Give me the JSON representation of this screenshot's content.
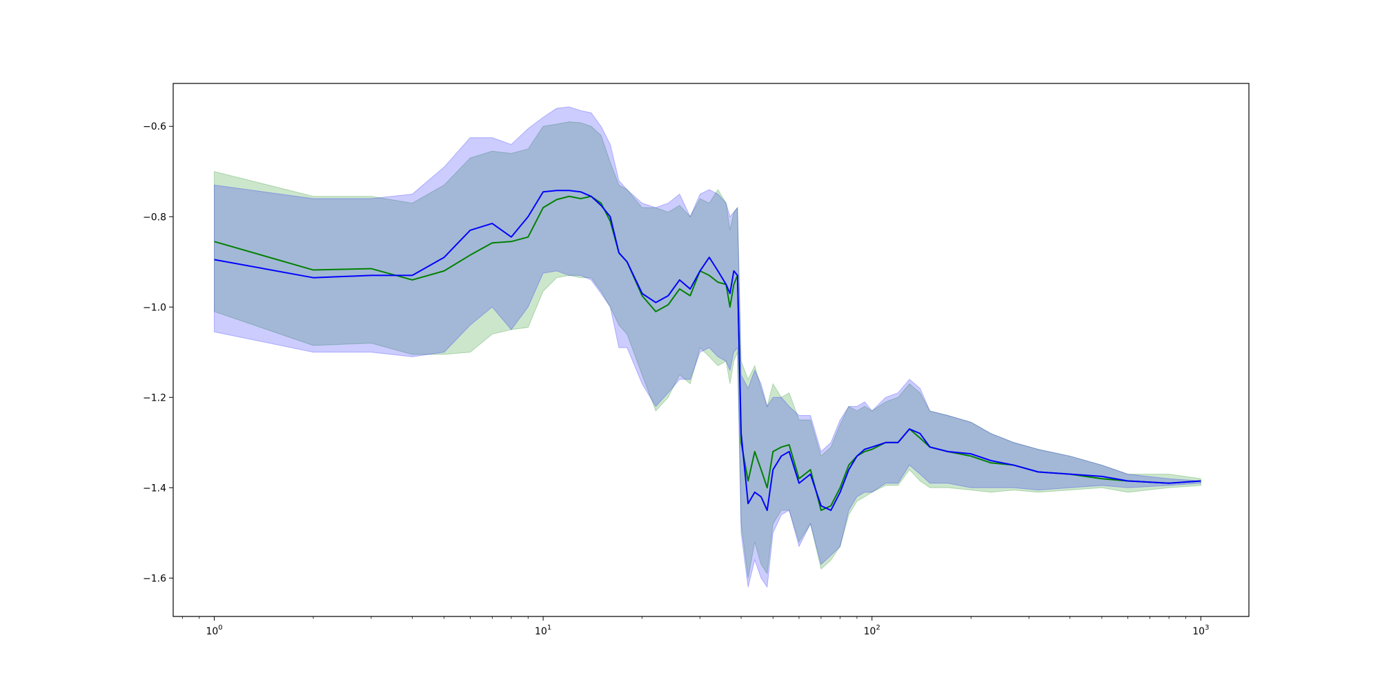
{
  "chart_data": {
    "type": "line",
    "x_scale": "log",
    "xlim": [
      0.75,
      1400
    ],
    "ylim": [
      -1.685,
      -0.505
    ],
    "xticks": [
      {
        "value": 1,
        "base": "10",
        "exp": "0"
      },
      {
        "value": 10,
        "base": "10",
        "exp": "1"
      },
      {
        "value": 100,
        "base": "10",
        "exp": "2"
      },
      {
        "value": 1000,
        "base": "10",
        "exp": "3"
      }
    ],
    "yticks": [
      {
        "value": -0.6,
        "label": "−0.6"
      },
      {
        "value": -0.8,
        "label": "−0.8"
      },
      {
        "value": -1.0,
        "label": "−1.0"
      },
      {
        "value": -1.2,
        "label": "−1.2"
      },
      {
        "value": -1.4,
        "label": "−1.4"
      },
      {
        "value": -1.6,
        "label": "−1.6"
      }
    ],
    "grid": false,
    "legend": "none",
    "series": [
      {
        "color": "#008000",
        "band_color": "#008000",
        "band_opacity": 0.2,
        "x": [
          1,
          2,
          3,
          4,
          5,
          6,
          7,
          8,
          9,
          10,
          11,
          12,
          13,
          14,
          15,
          16,
          17,
          18,
          20,
          22,
          24,
          26,
          28,
          30,
          32,
          34,
          36,
          37,
          38,
          39,
          40,
          42,
          44,
          46,
          48,
          50,
          53,
          56,
          60,
          65,
          70,
          75,
          80,
          85,
          90,
          95,
          100,
          110,
          120,
          130,
          140,
          150,
          170,
          200,
          230,
          270,
          320,
          400,
          500,
          600,
          800,
          1000
        ],
        "y": [
          -0.855,
          -0.918,
          -0.915,
          -0.94,
          -0.92,
          -0.885,
          -0.858,
          -0.855,
          -0.845,
          -0.78,
          -0.762,
          -0.755,
          -0.76,
          -0.755,
          -0.77,
          -0.81,
          -0.88,
          -0.9,
          -0.975,
          -1.01,
          -0.995,
          -0.96,
          -0.975,
          -0.92,
          -0.93,
          -0.945,
          -0.95,
          -1.0,
          -0.95,
          -0.93,
          -1.3,
          -1.385,
          -1.32,
          -1.36,
          -1.4,
          -1.32,
          -1.31,
          -1.305,
          -1.38,
          -1.36,
          -1.45,
          -1.44,
          -1.4,
          -1.35,
          -1.33,
          -1.32,
          -1.315,
          -1.3,
          -1.3,
          -1.27,
          -1.29,
          -1.31,
          -1.32,
          -1.33,
          -1.345,
          -1.35,
          -1.365,
          -1.37,
          -1.38,
          -1.385,
          -1.39,
          -1.385
        ],
        "upper": [
          -0.7,
          -0.755,
          -0.755,
          -0.77,
          -0.73,
          -0.67,
          -0.655,
          -0.66,
          -0.65,
          -0.6,
          -0.595,
          -0.59,
          -0.592,
          -0.6,
          -0.62,
          -0.68,
          -0.73,
          -0.74,
          -0.78,
          -0.78,
          -0.79,
          -0.775,
          -0.8,
          -0.76,
          -0.77,
          -0.74,
          -0.77,
          -0.83,
          -0.79,
          -0.78,
          -1.12,
          -1.16,
          -1.13,
          -1.18,
          -1.22,
          -1.17,
          -1.2,
          -1.19,
          -1.25,
          -1.25,
          -1.33,
          -1.31,
          -1.26,
          -1.22,
          -1.23,
          -1.22,
          -1.23,
          -1.21,
          -1.2,
          -1.17,
          -1.19,
          -1.23,
          -1.24,
          -1.255,
          -1.28,
          -1.3,
          -1.315,
          -1.33,
          -1.35,
          -1.37,
          -1.37,
          -1.38
        ],
        "lower": [
          -1.01,
          -1.085,
          -1.08,
          -1.105,
          -1.105,
          -1.1,
          -1.06,
          -1.05,
          -1.045,
          -0.965,
          -0.935,
          -0.93,
          -0.935,
          -0.935,
          -0.965,
          -1.0,
          -1.04,
          -1.06,
          -1.15,
          -1.23,
          -1.2,
          -1.15,
          -1.17,
          -1.09,
          -1.11,
          -1.13,
          -1.12,
          -1.17,
          -1.12,
          -1.1,
          -1.48,
          -1.6,
          -1.52,
          -1.57,
          -1.59,
          -1.48,
          -1.45,
          -1.45,
          -1.52,
          -1.48,
          -1.58,
          -1.56,
          -1.53,
          -1.46,
          -1.43,
          -1.42,
          -1.41,
          -1.395,
          -1.395,
          -1.36,
          -1.385,
          -1.4,
          -1.4,
          -1.405,
          -1.41,
          -1.405,
          -1.41,
          -1.405,
          -1.4,
          -1.41,
          -1.4,
          -1.395
        ]
      },
      {
        "color": "#0000ff",
        "band_color": "#0000ff",
        "band_opacity": 0.2,
        "x": [
          1,
          2,
          3,
          4,
          5,
          6,
          7,
          8,
          9,
          10,
          11,
          12,
          13,
          14,
          15,
          16,
          17,
          18,
          20,
          22,
          24,
          26,
          28,
          30,
          32,
          34,
          36,
          37,
          38,
          39,
          40,
          42,
          44,
          46,
          48,
          50,
          53,
          56,
          60,
          65,
          70,
          75,
          80,
          85,
          90,
          95,
          100,
          110,
          120,
          130,
          140,
          150,
          170,
          200,
          230,
          270,
          320,
          400,
          500,
          600,
          800,
          1000
        ],
        "y": [
          -0.895,
          -0.935,
          -0.93,
          -0.93,
          -0.89,
          -0.83,
          -0.815,
          -0.845,
          -0.8,
          -0.745,
          -0.742,
          -0.742,
          -0.745,
          -0.755,
          -0.775,
          -0.8,
          -0.88,
          -0.9,
          -0.97,
          -0.99,
          -0.975,
          -0.94,
          -0.96,
          -0.92,
          -0.89,
          -0.92,
          -0.95,
          -0.97,
          -0.92,
          -0.93,
          -1.28,
          -1.435,
          -1.41,
          -1.42,
          -1.45,
          -1.36,
          -1.33,
          -1.32,
          -1.39,
          -1.37,
          -1.44,
          -1.45,
          -1.41,
          -1.36,
          -1.33,
          -1.315,
          -1.31,
          -1.3,
          -1.3,
          -1.27,
          -1.28,
          -1.31,
          -1.32,
          -1.325,
          -1.34,
          -1.35,
          -1.365,
          -1.37,
          -1.375,
          -1.385,
          -1.39,
          -1.385
        ],
        "upper": [
          -0.73,
          -0.76,
          -0.76,
          -0.75,
          -0.69,
          -0.625,
          -0.625,
          -0.64,
          -0.605,
          -0.58,
          -0.56,
          -0.557,
          -0.565,
          -0.57,
          -0.6,
          -0.64,
          -0.72,
          -0.74,
          -0.77,
          -0.78,
          -0.77,
          -0.75,
          -0.8,
          -0.75,
          -0.74,
          -0.75,
          -0.77,
          -0.8,
          -0.79,
          -0.78,
          -1.15,
          -1.18,
          -1.14,
          -1.17,
          -1.22,
          -1.2,
          -1.2,
          -1.22,
          -1.24,
          -1.24,
          -1.32,
          -1.3,
          -1.25,
          -1.22,
          -1.22,
          -1.21,
          -1.23,
          -1.2,
          -1.19,
          -1.16,
          -1.18,
          -1.23,
          -1.24,
          -1.255,
          -1.28,
          -1.3,
          -1.315,
          -1.33,
          -1.35,
          -1.37,
          -1.38,
          -1.385
        ],
        "lower": [
          -1.055,
          -1.1,
          -1.1,
          -1.11,
          -1.1,
          -1.04,
          -1.0,
          -1.05,
          -1.0,
          -0.925,
          -0.92,
          -0.93,
          -0.93,
          -0.94,
          -0.97,
          -1.0,
          -1.09,
          -1.09,
          -1.17,
          -1.22,
          -1.19,
          -1.16,
          -1.16,
          -1.1,
          -1.09,
          -1.11,
          -1.12,
          -1.14,
          -1.1,
          -1.09,
          -1.5,
          -1.62,
          -1.56,
          -1.6,
          -1.62,
          -1.5,
          -1.46,
          -1.45,
          -1.53,
          -1.48,
          -1.57,
          -1.55,
          -1.53,
          -1.45,
          -1.42,
          -1.41,
          -1.41,
          -1.39,
          -1.39,
          -1.35,
          -1.37,
          -1.39,
          -1.39,
          -1.4,
          -1.4,
          -1.4,
          -1.405,
          -1.4,
          -1.395,
          -1.4,
          -1.395,
          -1.39
        ]
      }
    ]
  }
}
